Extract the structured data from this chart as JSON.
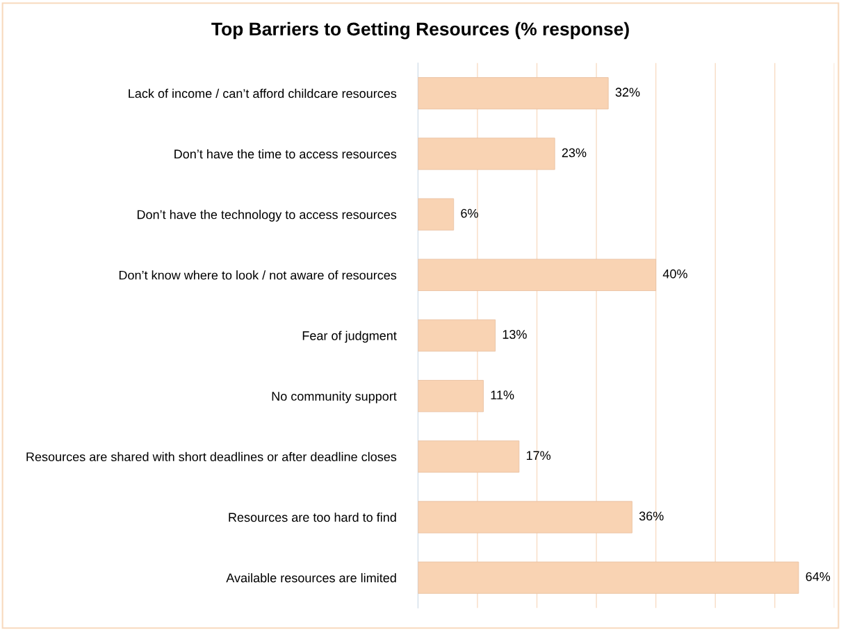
{
  "chart_data": {
    "type": "bar",
    "orientation": "horizontal",
    "title": "Top Barriers to Getting Resources (% response)",
    "categories": [
      "Lack of income / can’t afford childcare resources",
      "Don’t have the time to access resources",
      "Don’t have the technology to access resources",
      "Don’t know where to look / not aware of resources",
      "Fear of judgment",
      "No community support",
      "Resources are shared with short deadlines or after deadline closes",
      "Resources are too hard to find",
      "Available resources are limited"
    ],
    "values": [
      32,
      23,
      6,
      40,
      13,
      11,
      17,
      36,
      64
    ],
    "value_labels": [
      "32%",
      "23%",
      "6%",
      "40%",
      "13%",
      "11%",
      "17%",
      "36%",
      "64%"
    ],
    "color": "#f9d3b3",
    "xlim": [
      0,
      70
    ],
    "xticks": [
      {
        "value": 0,
        "label": null
      },
      {
        "value": 10,
        "label": null
      },
      {
        "value": 20,
        "label": null
      },
      {
        "value": 30,
        "label": null
      },
      {
        "value": 40,
        "label": null
      },
      {
        "value": 50,
        "label": null
      },
      {
        "value": 60,
        "label": null
      },
      {
        "value": 70,
        "label": null
      }
    ],
    "grid": "x",
    "tick_labels": "y"
  }
}
